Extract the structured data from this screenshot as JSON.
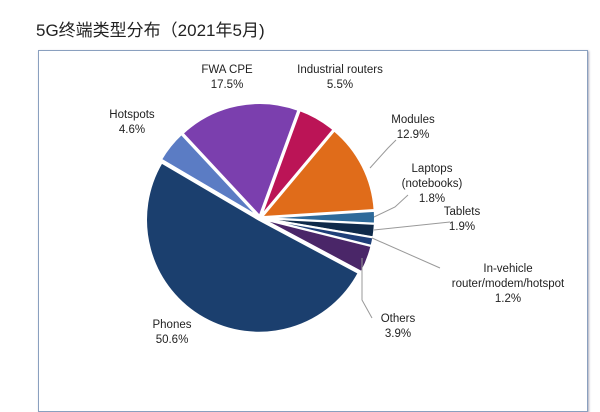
{
  "chart_data": {
    "type": "pie",
    "title": "5G终端类型分布（2021年5月)",
    "slices": [
      {
        "label": [
          "Laptops",
          "(notebooks)"
        ],
        "value": 1.8,
        "value_label": "1.8%",
        "color": "#2e6a9a"
      },
      {
        "label": [
          "Tablets"
        ],
        "value": 1.9,
        "value_label": "1.9%",
        "color": "#0f2a4a"
      },
      {
        "label": [
          "In-vehicle",
          "router/modem/hotspot"
        ],
        "value": 1.2,
        "value_label": "1.2%",
        "color": "#1f3f78"
      },
      {
        "label": [
          "Others"
        ],
        "value": 3.9,
        "value_label": "3.9%",
        "color": "#4a2668"
      },
      {
        "label": [
          "Phones"
        ],
        "value": 50.6,
        "value_label": "50.6%",
        "color": "#1b3f6e"
      },
      {
        "label": [
          "Hotspots"
        ],
        "value": 4.6,
        "value_label": "4.6%",
        "color": "#5b7cc4"
      },
      {
        "label": [
          "FWA CPE"
        ],
        "value": 17.5,
        "value_label": "17.5%",
        "color": "#7b3fae"
      },
      {
        "label": [
          "Industrial routers"
        ],
        "value": 5.5,
        "value_label": "5.5%",
        "color": "#bb1456"
      },
      {
        "label": [
          "Modules"
        ],
        "value": 12.9,
        "value_label": "12.9%",
        "color": "#e06c1a"
      }
    ]
  }
}
